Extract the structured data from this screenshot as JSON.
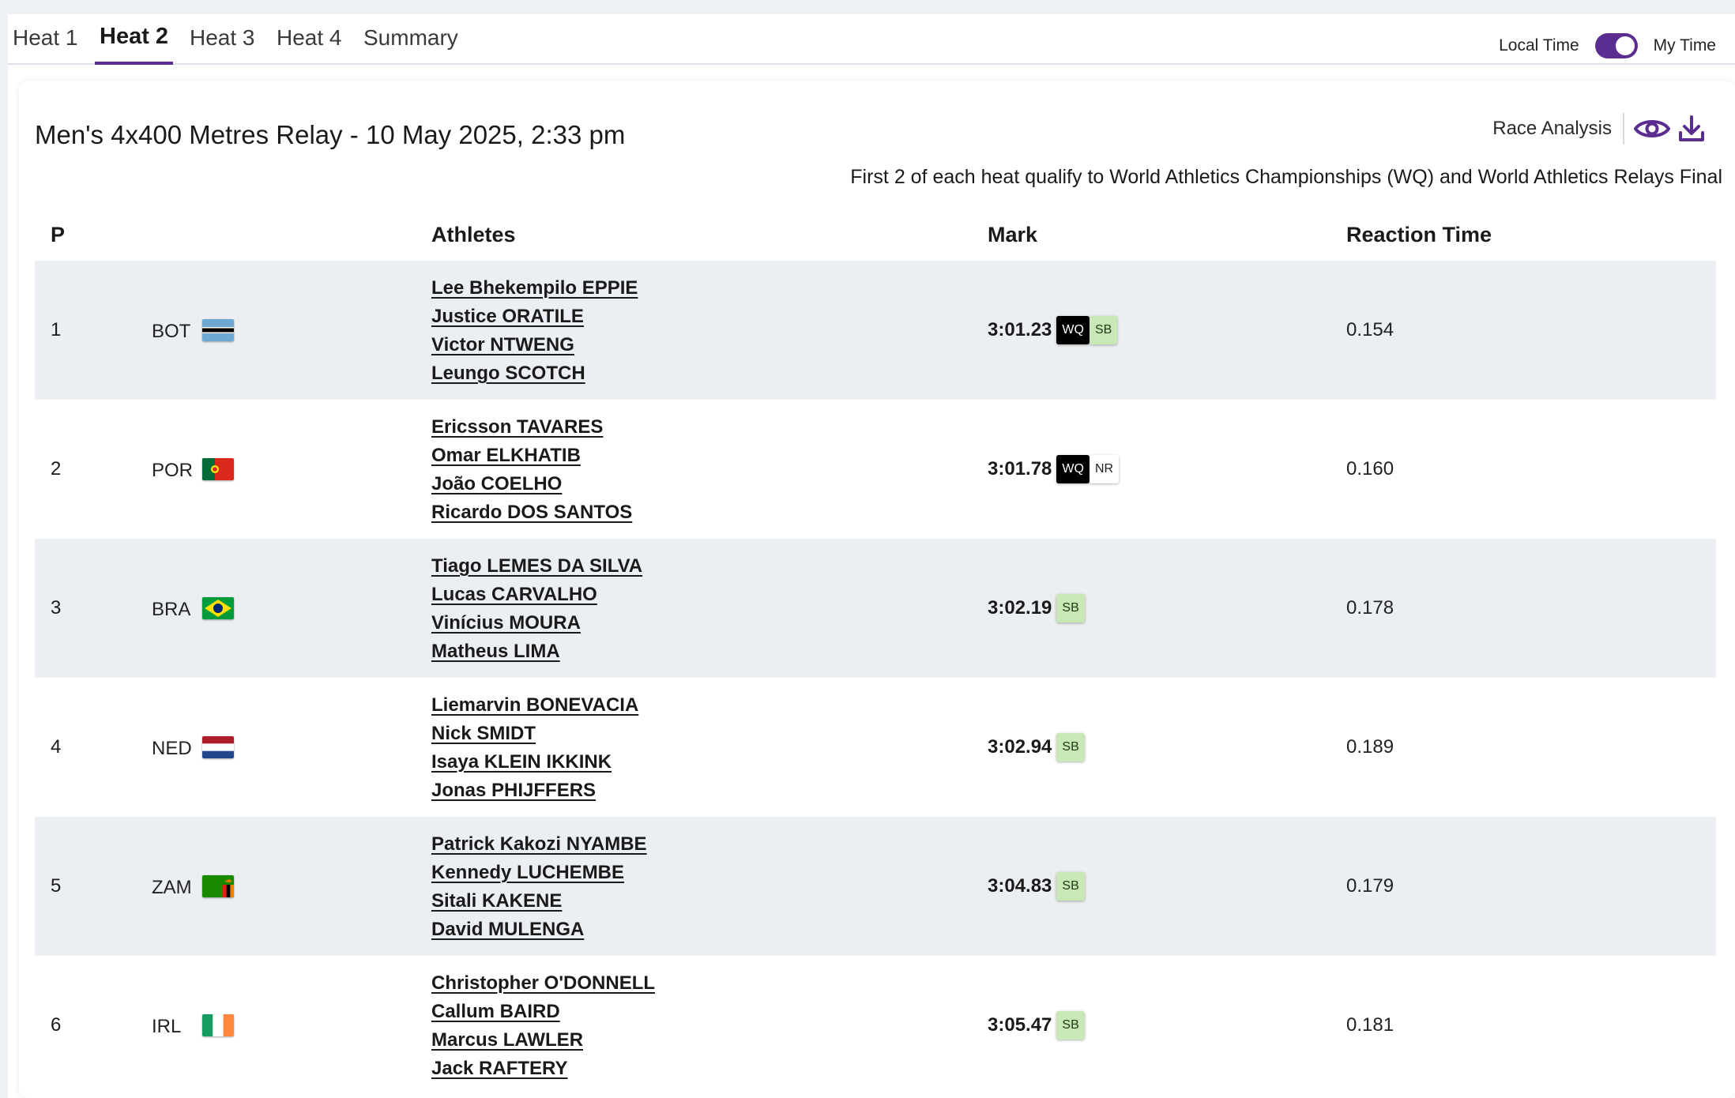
{
  "tabs": [
    {
      "label": "Heat 1"
    },
    {
      "label": "Heat 2"
    },
    {
      "label": "Heat 3"
    },
    {
      "label": "Heat 4"
    },
    {
      "label": "Summary"
    }
  ],
  "active_tab": "Heat 2",
  "timezone": {
    "left_label": "Local Time",
    "right_label": "My Time",
    "toggle_on": true
  },
  "race": {
    "title": "Men's 4x400 Metres Relay - 10 May 2025, 2:33 pm",
    "analysis_label": "Race Analysis",
    "qualification_note": "First 2 of each heat qualify to World Athletics Championships (WQ) and World Athletics Relays Final"
  },
  "columns": {
    "pos": "P",
    "athletes": "Athletes",
    "mark": "Mark",
    "reaction": "Reaction Time"
  },
  "colors": {
    "accent": "#5b2d91",
    "row_shade": "#ebeef2",
    "badge_sb": "#c8e8b6",
    "badge_wq": "#000000"
  },
  "results": [
    {
      "pos": "1",
      "country": "BOT",
      "flag": "flag-bot-icon",
      "athletes": [
        "Lee Bhekempilo EPPIE",
        "Justice ORATILE",
        "Victor NTWENG",
        "Leungo SCOTCH"
      ],
      "mark": "3:01.23",
      "badges": [
        "WQ",
        "SB"
      ],
      "reaction": "0.154"
    },
    {
      "pos": "2",
      "country": "POR",
      "flag": "flag-por-icon",
      "athletes": [
        "Ericsson TAVARES",
        "Omar ELKHATIB",
        "João COELHO",
        "Ricardo DOS SANTOS"
      ],
      "mark": "3:01.78",
      "badges": [
        "WQ",
        "NR"
      ],
      "reaction": "0.160"
    },
    {
      "pos": "3",
      "country": "BRA",
      "flag": "flag-bra-icon",
      "athletes": [
        "Tiago LEMES DA SILVA",
        "Lucas CARVALHO",
        "Vinícius MOURA",
        "Matheus LIMA"
      ],
      "mark": "3:02.19",
      "badges": [
        "SB"
      ],
      "reaction": "0.178"
    },
    {
      "pos": "4",
      "country": "NED",
      "flag": "flag-ned-icon",
      "athletes": [
        "Liemarvin BONEVACIA",
        "Nick SMIDT",
        "Isaya KLEIN IKKINK",
        "Jonas PHIJFFERS"
      ],
      "mark": "3:02.94",
      "badges": [
        "SB"
      ],
      "reaction": "0.189"
    },
    {
      "pos": "5",
      "country": "ZAM",
      "flag": "flag-zam-icon",
      "athletes": [
        "Patrick Kakozi NYAMBE",
        "Kennedy LUCHEMBE",
        "Sitali KAKENE",
        "David MULENGA"
      ],
      "mark": "3:04.83",
      "badges": [
        "SB"
      ],
      "reaction": "0.179"
    },
    {
      "pos": "6",
      "country": "IRL",
      "flag": "flag-irl-icon",
      "athletes": [
        "Christopher O'DONNELL",
        "Callum BAIRD",
        "Marcus LAWLER",
        "Jack RAFTERY"
      ],
      "mark": "3:05.47",
      "badges": [
        "SB"
      ],
      "reaction": "0.181"
    }
  ]
}
